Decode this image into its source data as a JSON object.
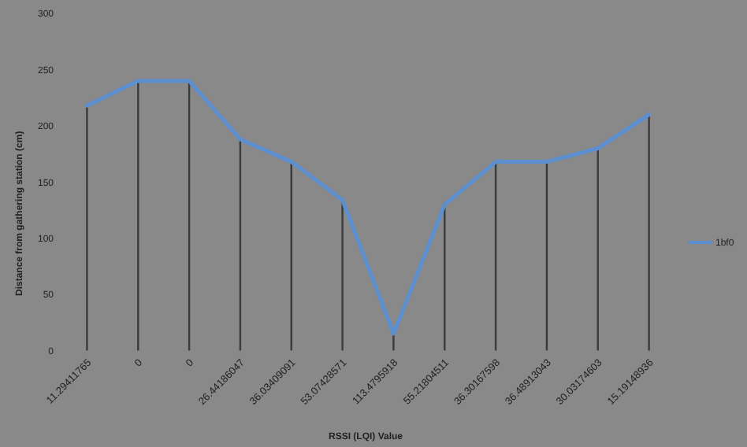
{
  "chart_data": {
    "type": "line",
    "xlabel": "RSSI (LQI) Value",
    "ylabel": "Distance from gathering station  (cm)",
    "categories": [
      "11.29411765",
      "0",
      "0",
      "26.44186047",
      "36.03409091",
      "53.07428571",
      "113.4795918",
      "55.21804511",
      "36.30167598",
      "36.48913043",
      "30.03174603",
      "15.19148936"
    ],
    "series": [
      {
        "type": "bar",
        "color": "#3a3a3a",
        "values": [
          218,
          240,
          240,
          188,
          168,
          134,
          15,
          130,
          168,
          168,
          180,
          210
        ]
      },
      {
        "name": "1bf0",
        "color": "#5b8fd0",
        "values": [
          218,
          240,
          240,
          188,
          168,
          134,
          15,
          130,
          168,
          168,
          180,
          210
        ]
      }
    ],
    "ylim": [
      0,
      300
    ],
    "yticks": [
      0,
      50,
      100,
      150,
      200,
      250,
      300
    ],
    "grid": false,
    "legend": "right",
    "marker": "none",
    "line_style": "solid"
  }
}
